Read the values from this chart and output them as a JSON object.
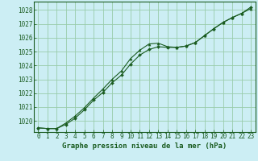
{
  "title": "Graphe pression niveau de la mer (hPa)",
  "background_color": "#cceef4",
  "grid_color": "#99ccaa",
  "line_color": "#1a5c20",
  "xlim": [
    -0.5,
    23.5
  ],
  "ylim": [
    1019.2,
    1028.6
  ],
  "xticks": [
    0,
    1,
    2,
    3,
    4,
    5,
    6,
    7,
    8,
    9,
    10,
    11,
    12,
    13,
    14,
    15,
    16,
    17,
    18,
    19,
    20,
    21,
    22,
    23
  ],
  "yticks": [
    1020,
    1021,
    1022,
    1023,
    1024,
    1025,
    1026,
    1027,
    1028
  ],
  "series1_x": [
    0,
    1,
    2,
    3,
    4,
    5,
    6,
    7,
    8,
    9,
    10,
    11,
    12,
    13,
    14,
    15,
    16,
    17,
    18,
    19,
    20,
    21,
    22,
    23
  ],
  "series1_y": [
    1019.5,
    1019.45,
    1019.45,
    1019.75,
    1020.2,
    1020.8,
    1021.5,
    1022.05,
    1022.75,
    1023.3,
    1024.1,
    1024.75,
    1025.15,
    1025.35,
    1025.3,
    1025.3,
    1025.4,
    1025.65,
    1026.15,
    1026.65,
    1027.1,
    1027.45,
    1027.75,
    1028.2
  ],
  "series2_x": [
    0,
    1,
    2,
    3,
    4,
    5,
    6,
    7,
    8,
    9,
    10,
    11,
    12,
    13,
    14,
    15,
    16,
    17,
    18,
    19,
    20,
    21,
    22,
    23
  ],
  "series2_y": [
    1019.5,
    1019.45,
    1019.45,
    1019.85,
    1020.35,
    1020.95,
    1021.65,
    1022.3,
    1023.0,
    1023.6,
    1024.5,
    1025.1,
    1025.55,
    1025.6,
    1025.35,
    1025.3,
    1025.4,
    1025.65,
    1026.15,
    1026.65,
    1027.1,
    1027.45,
    1027.75,
    1028.1
  ],
  "tick_fontsize": 5.5,
  "title_fontsize": 6.5
}
